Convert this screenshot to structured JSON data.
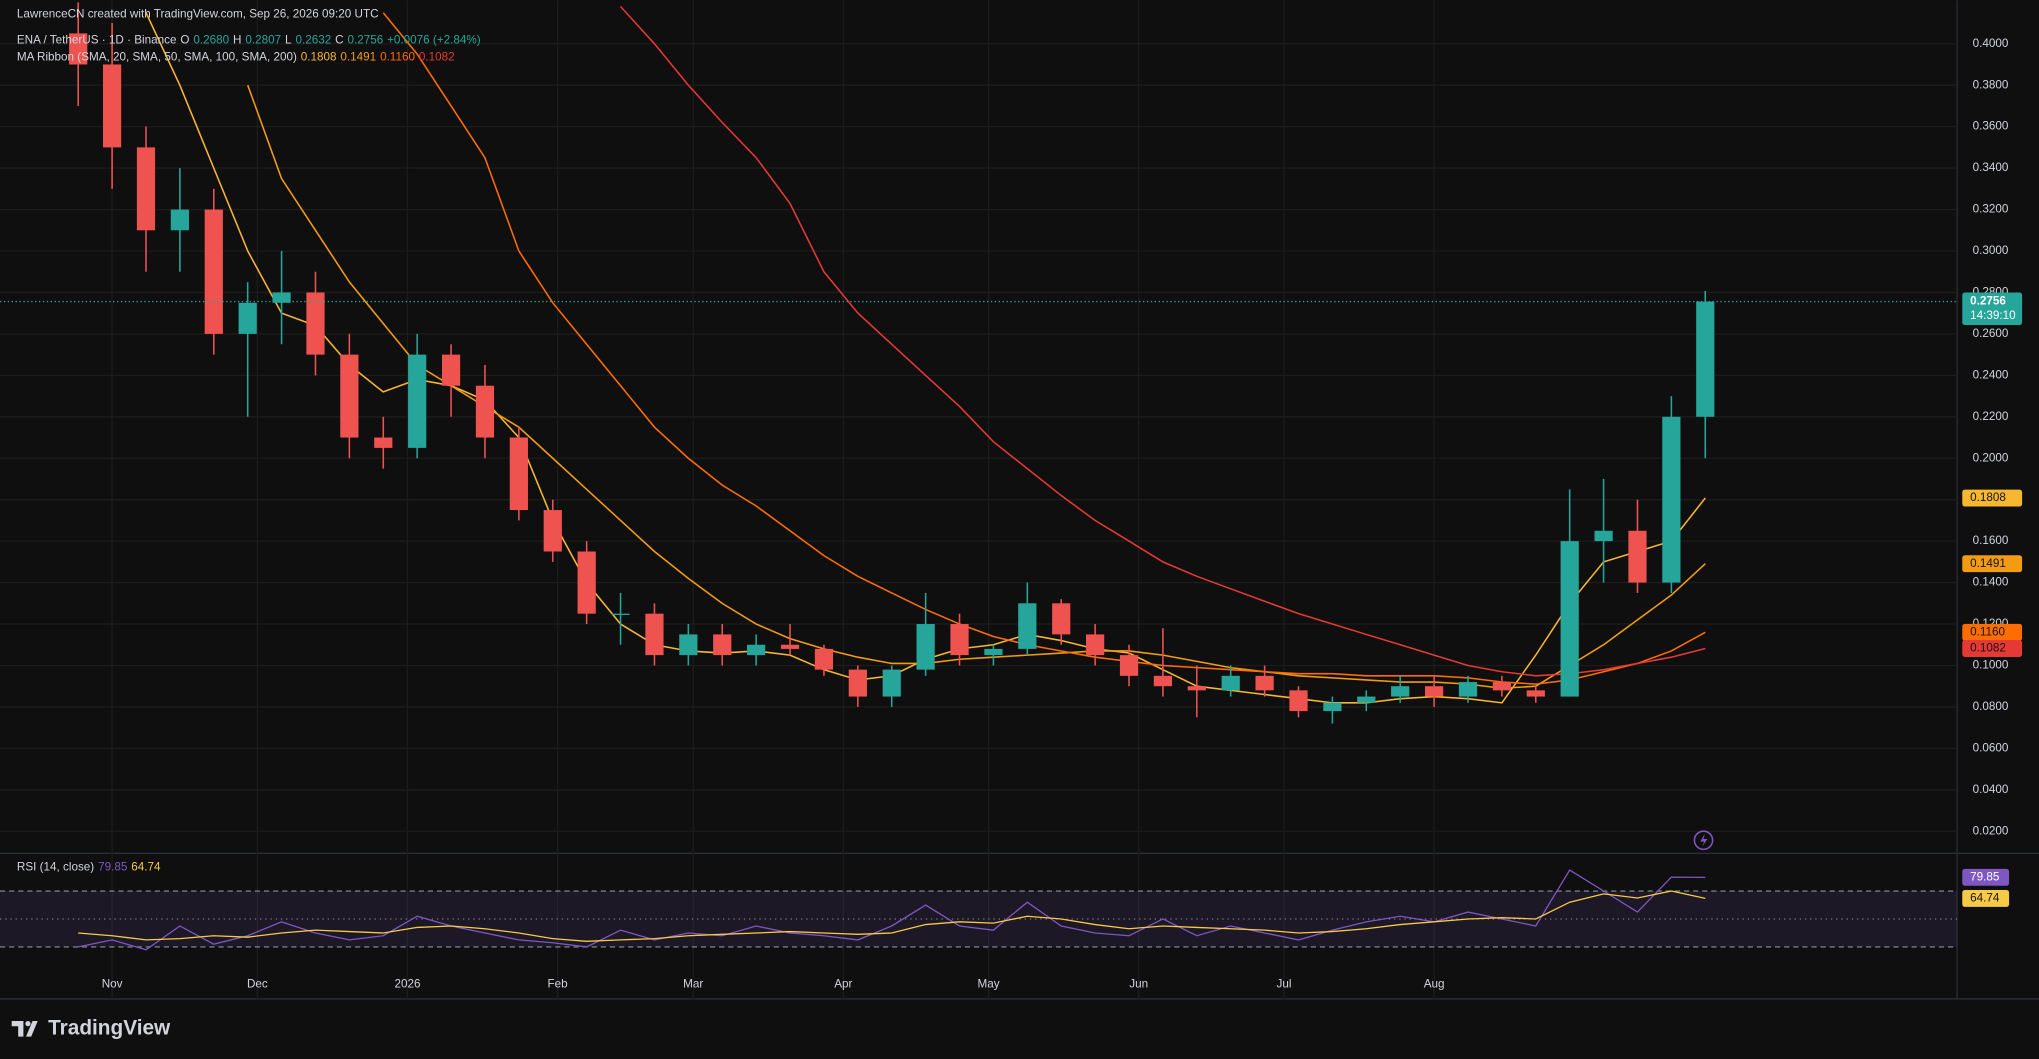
{
  "header": {
    "attribution": "LawrenceCN created with TradingView.com, Sep 26, 2026 09:20 UTC",
    "symbol": "ENA / TetherUS · 1D · Binance",
    "ohlc": [
      {
        "key": "O",
        "value": "0.2680"
      },
      {
        "key": "H",
        "value": "0.2807"
      },
      {
        "key": "L",
        "value": "0.2632"
      },
      {
        "key": "C",
        "value": "0.2756"
      }
    ],
    "change": "+0.0076 (+2.84%)",
    "countdown": "14:39:10",
    "brand": "TradingView"
  },
  "chart_data": [
    {
      "type": "candlestick",
      "indicator_label": "MA Ribbon (SMA, 20, SMA, 50, SMA, 100, SMA, 200)",
      "x": [
        "2025-10-25",
        "2025-11-01",
        "2025-11-08",
        "2025-11-15",
        "2025-11-22",
        "2025-11-29",
        "2025-12-06",
        "2025-12-13",
        "2025-12-20",
        "2025-12-27",
        "2026-01-03",
        "2026-01-10",
        "2026-01-17",
        "2026-01-24",
        "2026-01-31",
        "2026-02-07",
        "2026-02-14",
        "2026-02-21",
        "2026-02-28",
        "2026-03-07",
        "2026-03-14",
        "2026-03-21",
        "2026-03-28",
        "2026-04-04",
        "2026-04-11",
        "2026-04-18",
        "2026-04-25",
        "2026-05-02",
        "2026-05-09",
        "2026-05-16",
        "2026-05-23",
        "2026-05-30",
        "2026-06-06",
        "2026-06-13",
        "2026-06-20",
        "2026-06-27",
        "2026-07-04",
        "2026-07-11",
        "2026-07-18",
        "2026-07-25",
        "2026-08-01",
        "2026-08-08",
        "2026-08-15",
        "2026-08-22",
        "2026-08-29",
        "2026-09-05",
        "2026-09-12",
        "2026-09-19",
        "2026-09-26"
      ],
      "open": [
        0.405,
        0.39,
        0.35,
        0.31,
        0.32,
        0.26,
        0.275,
        0.28,
        0.25,
        0.21,
        0.205,
        0.25,
        0.235,
        0.21,
        0.175,
        0.155,
        0.125,
        0.125,
        0.105,
        0.115,
        0.105,
        0.11,
        0.108,
        0.098,
        0.085,
        0.098,
        0.12,
        0.105,
        0.108,
        0.13,
        0.115,
        0.105,
        0.095,
        0.09,
        0.088,
        0.095,
        0.088,
        0.078,
        0.082,
        0.085,
        0.09,
        0.085,
        0.092,
        0.088,
        0.085,
        0.16,
        0.165,
        0.14,
        0.22
      ],
      "high": [
        0.42,
        0.41,
        0.36,
        0.34,
        0.33,
        0.285,
        0.3,
        0.29,
        0.26,
        0.22,
        0.26,
        0.255,
        0.245,
        0.215,
        0.18,
        0.16,
        0.135,
        0.13,
        0.12,
        0.12,
        0.115,
        0.12,
        0.11,
        0.1,
        0.1,
        0.135,
        0.125,
        0.11,
        0.14,
        0.132,
        0.12,
        0.11,
        0.118,
        0.1,
        0.1,
        0.1,
        0.09,
        0.085,
        0.088,
        0.095,
        0.095,
        0.095,
        0.095,
        0.09,
        0.185,
        0.19,
        0.18,
        0.23,
        0.2807
      ],
      "low": [
        0.37,
        0.33,
        0.29,
        0.29,
        0.25,
        0.22,
        0.255,
        0.24,
        0.2,
        0.195,
        0.2,
        0.22,
        0.2,
        0.17,
        0.15,
        0.12,
        0.11,
        0.1,
        0.1,
        0.1,
        0.1,
        0.105,
        0.095,
        0.08,
        0.08,
        0.095,
        0.1,
        0.1,
        0.105,
        0.11,
        0.1,
        0.09,
        0.085,
        0.075,
        0.085,
        0.085,
        0.075,
        0.072,
        0.078,
        0.082,
        0.08,
        0.082,
        0.085,
        0.082,
        0.085,
        0.14,
        0.135,
        0.135,
        0.2
      ],
      "close": [
        0.39,
        0.35,
        0.31,
        0.32,
        0.26,
        0.275,
        0.28,
        0.25,
        0.21,
        0.205,
        0.25,
        0.235,
        0.21,
        0.175,
        0.155,
        0.125,
        0.125,
        0.105,
        0.115,
        0.105,
        0.11,
        0.108,
        0.098,
        0.085,
        0.098,
        0.12,
        0.105,
        0.108,
        0.13,
        0.115,
        0.105,
        0.095,
        0.09,
        0.088,
        0.095,
        0.088,
        0.078,
        0.082,
        0.085,
        0.09,
        0.085,
        0.092,
        0.088,
        0.085,
        0.16,
        0.165,
        0.14,
        0.22,
        0.2756
      ],
      "up_color": "#26a69a",
      "down_color": "#ef5350",
      "last_label": "0.2756",
      "series": [
        {
          "color": "#f7b731",
          "last_label": "0.1808",
          "values": [
            null,
            null,
            0.415,
            0.38,
            0.34,
            0.3,
            0.27,
            0.264,
            0.245,
            0.232,
            0.238,
            0.235,
            0.228,
            0.21,
            0.17,
            0.14,
            0.12,
            0.11,
            0.107,
            0.106,
            0.107,
            0.105,
            0.098,
            0.093,
            0.095,
            0.103,
            0.108,
            0.11,
            0.115,
            0.112,
            0.108,
            0.106,
            0.098,
            0.09,
            0.088,
            0.086,
            0.084,
            0.082,
            0.082,
            0.084,
            0.085,
            0.084,
            0.082,
            0.105,
            0.13,
            0.15,
            0.155,
            0.16,
            0.1808
          ]
        },
        {
          "color": "#f39c12",
          "last_label": "0.1491",
          "values": [
            null,
            null,
            null,
            null,
            null,
            0.38,
            0.335,
            0.31,
            0.285,
            0.265,
            0.245,
            0.235,
            0.225,
            0.215,
            0.2,
            0.185,
            0.17,
            0.155,
            0.142,
            0.13,
            0.12,
            0.113,
            0.108,
            0.104,
            0.101,
            0.101,
            0.103,
            0.104,
            0.105,
            0.106,
            0.107,
            0.107,
            0.105,
            0.102,
            0.099,
            0.097,
            0.095,
            0.094,
            0.093,
            0.092,
            0.092,
            0.091,
            0.089,
            0.09,
            0.1,
            0.11,
            0.122,
            0.134,
            0.1491
          ]
        },
        {
          "color": "#ff6d00",
          "last_label": "0.1160",
          "values": [
            null,
            null,
            null,
            null,
            null,
            null,
            null,
            null,
            null,
            0.415,
            0.395,
            0.37,
            0.345,
            0.3,
            0.275,
            0.255,
            0.235,
            0.215,
            0.2,
            0.187,
            0.177,
            0.165,
            0.153,
            0.143,
            0.135,
            0.127,
            0.12,
            0.114,
            0.11,
            0.107,
            0.104,
            0.102,
            0.1,
            0.099,
            0.098,
            0.097,
            0.096,
            0.096,
            0.095,
            0.095,
            0.095,
            0.094,
            0.092,
            0.091,
            0.093,
            0.097,
            0.101,
            0.107,
            0.116
          ]
        },
        {
          "color": "#e53935",
          "last_label": "0.1082",
          "values": [
            null,
            null,
            null,
            null,
            null,
            null,
            null,
            null,
            null,
            null,
            null,
            null,
            null,
            null,
            null,
            null,
            0.418,
            0.4,
            0.38,
            0.362,
            0.345,
            0.323,
            0.29,
            0.27,
            0.255,
            0.24,
            0.225,
            0.208,
            0.195,
            0.182,
            0.17,
            0.16,
            0.15,
            0.143,
            0.137,
            0.131,
            0.125,
            0.12,
            0.115,
            0.11,
            0.105,
            0.1,
            0.097,
            0.095,
            0.096,
            0.098,
            0.101,
            0.104,
            0.1082
          ]
        }
      ],
      "xlim": [
        "2025-10-11",
        "2026-11-17"
      ],
      "xticks": [
        {
          "value": "2025-11-01",
          "label": "Nov"
        },
        {
          "value": "2025-12-01",
          "label": "Dec"
        },
        {
          "value": "2026-01-01",
          "label": "2026"
        },
        {
          "value": "2026-02-01",
          "label": "Feb"
        },
        {
          "value": "2026-03-01",
          "label": "Mar"
        },
        {
          "value": "2026-04-01",
          "label": "Apr"
        },
        {
          "value": "2026-05-01",
          "label": "May"
        },
        {
          "value": "2026-06-01",
          "label": "Jun"
        },
        {
          "value": "2026-07-01",
          "label": "Jul"
        },
        {
          "value": "2026-08-01",
          "label": "Aug"
        }
      ],
      "ylim": [
        0.01,
        0.421
      ],
      "yticks": [
        {
          "value": 0.02,
          "label": "0.0200"
        },
        {
          "value": 0.04,
          "label": "0.0400"
        },
        {
          "value": 0.06,
          "label": "0.0600"
        },
        {
          "value": 0.08,
          "label": "0.0800"
        },
        {
          "value": 0.1,
          "label": "0.1000"
        },
        {
          "value": 0.12,
          "label": "0.1200"
        },
        {
          "value": 0.14,
          "label": "0.1400"
        },
        {
          "value": 0.16,
          "label": "0.1600"
        },
        {
          "value": 0.18,
          "label": "0.1800"
        },
        {
          "value": 0.2,
          "label": "0.2000"
        },
        {
          "value": 0.22,
          "label": "0.2200"
        },
        {
          "value": 0.24,
          "label": "0.2400"
        },
        {
          "value": 0.26,
          "label": "0.2600"
        },
        {
          "value": 0.28,
          "label": "0.2800"
        },
        {
          "value": 0.3,
          "label": "0.3000"
        },
        {
          "value": 0.32,
          "label": "0.3200"
        },
        {
          "value": 0.34,
          "label": "0.3400"
        },
        {
          "value": 0.36,
          "label": "0.3600"
        },
        {
          "value": 0.38,
          "label": "0.3800"
        },
        {
          "value": 0.4,
          "label": "0.4000"
        }
      ],
      "grid": true
    },
    {
      "type": "line",
      "title": "RSI (14, close)",
      "x": [
        "2025-10-25",
        "2025-11-01",
        "2025-11-08",
        "2025-11-15",
        "2025-11-22",
        "2025-11-29",
        "2025-12-06",
        "2025-12-13",
        "2025-12-20",
        "2025-12-27",
        "2026-01-03",
        "2026-01-10",
        "2026-01-17",
        "2026-01-24",
        "2026-01-31",
        "2026-02-07",
        "2026-02-14",
        "2026-02-21",
        "2026-02-28",
        "2026-03-07",
        "2026-03-14",
        "2026-03-21",
        "2026-03-28",
        "2026-04-04",
        "2026-04-11",
        "2026-04-18",
        "2026-04-25",
        "2026-05-02",
        "2026-05-09",
        "2026-05-16",
        "2026-05-23",
        "2026-05-30",
        "2026-06-06",
        "2026-06-13",
        "2026-06-20",
        "2026-06-27",
        "2026-07-04",
        "2026-07-11",
        "2026-07-18",
        "2026-07-25",
        "2026-08-01",
        "2026-08-08",
        "2026-08-15",
        "2026-08-22",
        "2026-08-29",
        "2026-09-05",
        "2026-09-12",
        "2026-09-19",
        "2026-09-26"
      ],
      "series": [
        {
          "color": "#7e57c2",
          "last_label": "79.85",
          "values": [
            30,
            35,
            28,
            45,
            32,
            38,
            48,
            40,
            35,
            38,
            52,
            45,
            40,
            35,
            33,
            30,
            42,
            35,
            40,
            38,
            45,
            40,
            38,
            35,
            45,
            60,
            45,
            42,
            62,
            45,
            40,
            38,
            50,
            38,
            45,
            40,
            35,
            42,
            48,
            52,
            48,
            55,
            50,
            45,
            85,
            70,
            55,
            80,
            79.85
          ]
        },
        {
          "color": "#f7c948",
          "last_label": "64.74",
          "values": [
            40,
            38,
            35,
            36,
            38,
            37,
            40,
            42,
            41,
            40,
            44,
            45,
            43,
            40,
            36,
            34,
            35,
            36,
            38,
            39,
            40,
            41,
            40,
            39,
            40,
            46,
            48,
            47,
            52,
            50,
            46,
            43,
            45,
            44,
            43,
            42,
            40,
            41,
            43,
            46,
            48,
            50,
            51,
            50,
            62,
            68,
            65,
            70,
            64.74
          ]
        }
      ],
      "levels": [
        70,
        50,
        30
      ],
      "ylim": [
        23.5,
        93.3
      ]
    }
  ]
}
